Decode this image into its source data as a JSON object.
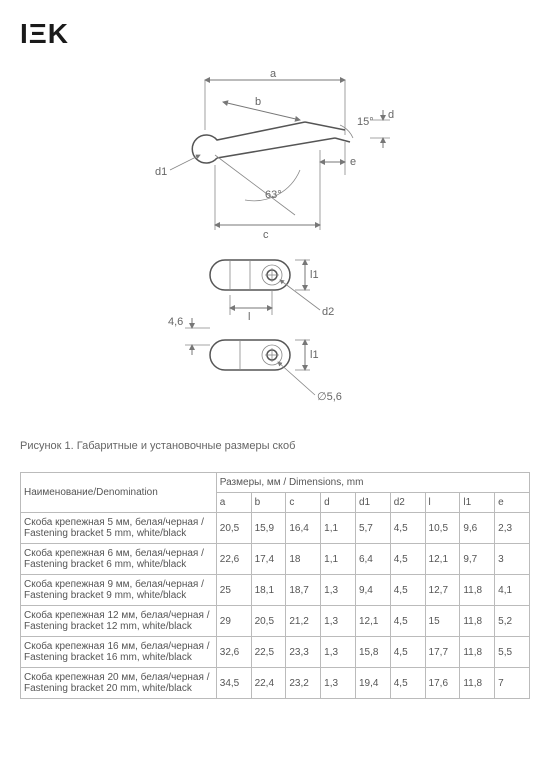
{
  "logo": "IΞK",
  "caption": "Рисунок 1. Габаритные и установочные размеры скоб",
  "diagram": {
    "labels": {
      "a": "a",
      "b": "b",
      "c": "c",
      "d": "d",
      "e": "e",
      "d1": "d1",
      "d2": "d2",
      "l": "l",
      "l1": "l1",
      "angle63": "63°",
      "angle15": "15°",
      "const1": "4,6",
      "const2": "∅5,6"
    },
    "stroke_main": "#555",
    "stroke_dim": "#777",
    "fontsize": 11
  },
  "table": {
    "header_name": "Наименование/Denomination",
    "header_dims": "Размеры, мм / Dimensions, mm",
    "columns": [
      "a",
      "b",
      "c",
      "d",
      "d1",
      "d2",
      "l",
      "l1",
      "e"
    ],
    "rows": [
      {
        "name": "Скоба крепежная 5 мм, белая/черная / Fastening bracket 5 mm, white/black",
        "vals": [
          "20,5",
          "15,9",
          "16,4",
          "1,1",
          "5,7",
          "4,5",
          "10,5",
          "9,6",
          "2,3"
        ]
      },
      {
        "name": "Скоба крепежная 6 мм, белая/черная / Fastening bracket 6 mm, white/black",
        "vals": [
          "22,6",
          "17,4",
          "18",
          "1,1",
          "6,4",
          "4,5",
          "12,1",
          "9,7",
          "3"
        ]
      },
      {
        "name": "Скоба крепежная 9 мм, белая/черная / Fastening bracket 9 mm, white/black",
        "vals": [
          "25",
          "18,1",
          "18,7",
          "1,3",
          "9,4",
          "4,5",
          "12,7",
          "11,8",
          "4,1"
        ]
      },
      {
        "name": "Скоба крепежная 12 мм, белая/черная / Fastening bracket 12 mm, white/black",
        "vals": [
          "29",
          "20,5",
          "21,2",
          "1,3",
          "12,1",
          "4,5",
          "15",
          "11,8",
          "5,2"
        ]
      },
      {
        "name": "Скоба крепежная 16 мм, белая/черная / Fastening bracket 16 mm, white/black",
        "vals": [
          "32,6",
          "22,5",
          "23,3",
          "1,3",
          "15,8",
          "4,5",
          "17,7",
          "11,8",
          "5,5"
        ]
      },
      {
        "name": "Скоба крепежная 20 мм, белая/черная / Fastening bracket 20 mm, white/black",
        "vals": [
          "34,5",
          "22,4",
          "23,2",
          "1,3",
          "19,4",
          "4,5",
          "17,6",
          "11,8",
          "7"
        ]
      }
    ]
  }
}
